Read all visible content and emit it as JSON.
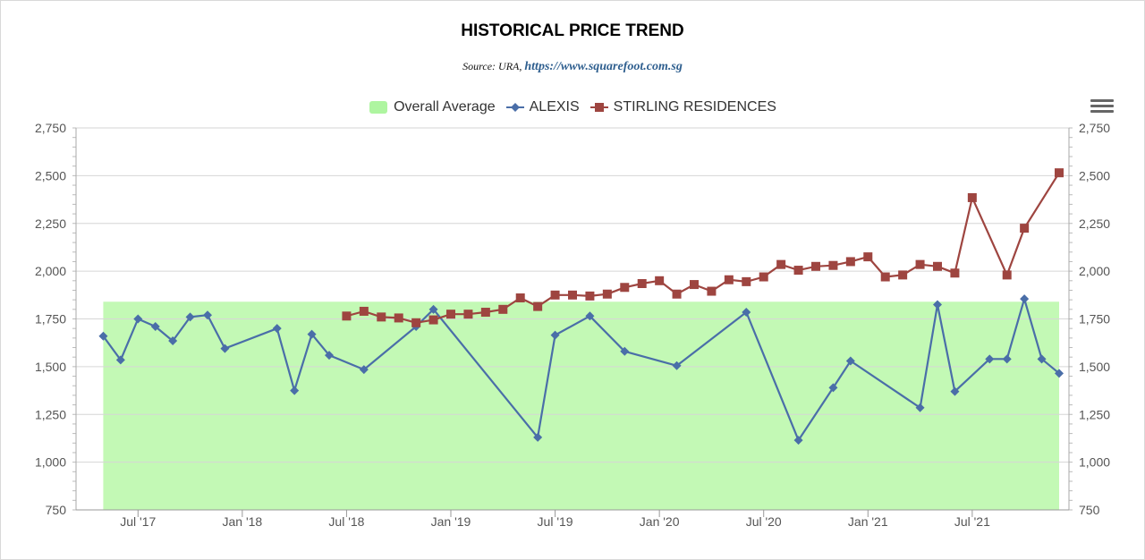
{
  "header": {
    "title": "HISTORICAL PRICE TREND",
    "source_prefix": "Source: URA, ",
    "source_link": "https://www.squarefoot.com.sg"
  },
  "legend": {
    "area_label": "Overall Average",
    "series1_label": "ALEXIS",
    "series2_label": "STIRLING RESIDENCES"
  },
  "menu": {
    "icon": "hamburger-menu-icon"
  },
  "colors": {
    "area_fill": "#c3f9b5",
    "area_legend": "#aef5a0",
    "alexis": "#4a6ea8",
    "stirling": "#9e4540",
    "grid": "#d6d6d6"
  },
  "chart_data": {
    "type": "line",
    "ylim": [
      750,
      2750
    ],
    "xlim": [
      "2017-04",
      "2021-12"
    ],
    "yticks": [
      750,
      1000,
      1250,
      1500,
      1750,
      2000,
      2250,
      2500,
      2750
    ],
    "ytick_labels": [
      "750",
      "1,000",
      "1,250",
      "1,500",
      "1,750",
      "2,000",
      "2,250",
      "2,500",
      "2,750"
    ],
    "xtick_dates": [
      "2017-07",
      "2018-01",
      "2018-07",
      "2019-01",
      "2019-07",
      "2020-01",
      "2020-07",
      "2021-01",
      "2021-07"
    ],
    "xtick_labels": [
      "Jul '17",
      "Jan '18",
      "Jul '18",
      "Jan '19",
      "Jul '19",
      "Jan '20",
      "Jul '20",
      "Jan '21",
      "Jul '21"
    ],
    "grid": true,
    "legend_position": "top-center",
    "overall_average": {
      "value": 1840,
      "from": "2017-05",
      "to": "2021-12"
    },
    "series": [
      {
        "name": "ALEXIS",
        "marker": "diamond",
        "points": [
          [
            "2017-05",
            1660
          ],
          [
            "2017-06",
            1535
          ],
          [
            "2017-07",
            1750
          ],
          [
            "2017-08",
            1710
          ],
          [
            "2017-09",
            1635
          ],
          [
            "2017-10",
            1760
          ],
          [
            "2017-11",
            1770
          ],
          [
            "2017-12",
            1595
          ],
          [
            "2018-03",
            1700
          ],
          [
            "2018-04",
            1375
          ],
          [
            "2018-05",
            1670
          ],
          [
            "2018-06",
            1560
          ],
          [
            "2018-08",
            1485
          ],
          [
            "2018-11",
            1710
          ],
          [
            "2018-12",
            1800
          ],
          [
            "2019-06",
            1130
          ],
          [
            "2019-07",
            1665
          ],
          [
            "2019-09",
            1765
          ],
          [
            "2019-11",
            1580
          ],
          [
            "2020-02",
            1505
          ],
          [
            "2020-06",
            1785
          ],
          [
            "2020-09",
            1115
          ],
          [
            "2020-11",
            1390
          ],
          [
            "2020-12",
            1530
          ],
          [
            "2021-04",
            1285
          ],
          [
            "2021-05",
            1825
          ],
          [
            "2021-06",
            1370
          ],
          [
            "2021-08",
            1540
          ],
          [
            "2021-09",
            1540
          ],
          [
            "2021-10",
            1855
          ],
          [
            "2021-11",
            1540
          ],
          [
            "2021-12",
            1465
          ]
        ]
      },
      {
        "name": "STIRLING RESIDENCES",
        "marker": "square",
        "points": [
          [
            "2018-07",
            1765
          ],
          [
            "2018-08",
            1790
          ],
          [
            "2018-09",
            1760
          ],
          [
            "2018-10",
            1755
          ],
          [
            "2018-11",
            1730
          ],
          [
            "2018-12",
            1745
          ],
          [
            "2019-01",
            1775
          ],
          [
            "2019-02",
            1775
          ],
          [
            "2019-03",
            1785
          ],
          [
            "2019-04",
            1800
          ],
          [
            "2019-05",
            1860
          ],
          [
            "2019-06",
            1815
          ],
          [
            "2019-07",
            1875
          ],
          [
            "2019-08",
            1875
          ],
          [
            "2019-09",
            1870
          ],
          [
            "2019-10",
            1880
          ],
          [
            "2019-11",
            1915
          ],
          [
            "2019-12",
            1935
          ],
          [
            "2020-01",
            1950
          ],
          [
            "2020-02",
            1880
          ],
          [
            "2020-03",
            1930
          ],
          [
            "2020-04",
            1895
          ],
          [
            "2020-05",
            1955
          ],
          [
            "2020-06",
            1945
          ],
          [
            "2020-07",
            1970
          ],
          [
            "2020-08",
            2035
          ],
          [
            "2020-09",
            2005
          ],
          [
            "2020-10",
            2025
          ],
          [
            "2020-11",
            2030
          ],
          [
            "2020-12",
            2050
          ],
          [
            "2021-01",
            2075
          ],
          [
            "2021-02",
            1970
          ],
          [
            "2021-03",
            1980
          ],
          [
            "2021-04",
            2035
          ],
          [
            "2021-05",
            2025
          ],
          [
            "2021-06",
            1990
          ],
          [
            "2021-07",
            2385
          ],
          [
            "2021-09",
            1980
          ],
          [
            "2021-10",
            2225
          ],
          [
            "2021-12",
            2515
          ]
        ]
      }
    ]
  }
}
